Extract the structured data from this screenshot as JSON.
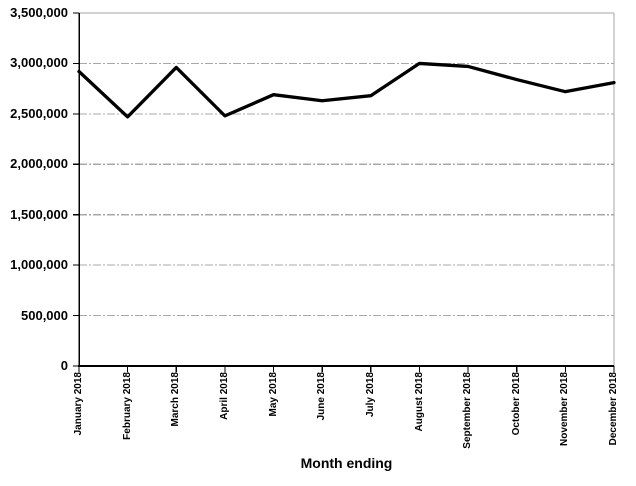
{
  "chart_data": {
    "type": "line",
    "xlabel": "Month ending",
    "categories": [
      "January 2018",
      "February 2018",
      "March 2018",
      "April 2018",
      "May 2018",
      "June 2018",
      "July 2018",
      "August 2018",
      "September 2018",
      "October 2018",
      "November 2018",
      "December 2018"
    ],
    "values": [
      2920000,
      2470000,
      2960000,
      2480000,
      2690000,
      2630000,
      2680000,
      3000000,
      2970000,
      2840000,
      2720000,
      2810000
    ],
    "ylim": [
      0,
      3500000
    ],
    "ytick_interval": 500000,
    "ytick_labels": [
      "3,500,000",
      "3,000,000",
      "2,500,000",
      "2,000,000",
      "1,500,000",
      "1,000,000",
      "500,000",
      "0"
    ],
    "legend": "none",
    "grid": "horizontal-dash-dot",
    "colors": {
      "line": "#000000",
      "axis": "#000000",
      "gridline": "#a8a8a8",
      "plot_border": "#a6a6a6",
      "background": "#ffffff",
      "label_text": "#000000"
    }
  }
}
